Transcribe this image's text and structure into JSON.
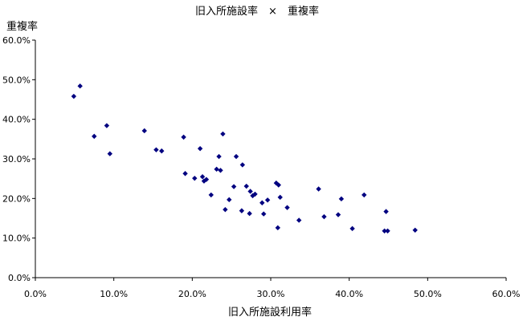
{
  "chart_data": {
    "type": "scatter",
    "title": "旧入所施設率　×　重複率",
    "xlabel": "旧入所施設利用率",
    "ylabel": "重複率",
    "xlim": [
      0,
      60
    ],
    "ylim": [
      0,
      60
    ],
    "xticks": [
      "0.0%",
      "10.0%",
      "20.0%",
      "30.0%",
      "40.0%",
      "50.0%",
      "60.0%"
    ],
    "yticks": [
      "0.0%",
      "10.0%",
      "20.0%",
      "30.0%",
      "40.0%",
      "50.0%",
      "60.0%"
    ],
    "grid": false,
    "legend": "none",
    "marker_color": "#000080",
    "marker": "diamond",
    "points": [
      {
        "x": 4.9,
        "y": 45.8
      },
      {
        "x": 5.7,
        "y": 48.4
      },
      {
        "x": 7.5,
        "y": 35.7
      },
      {
        "x": 9.1,
        "y": 38.4
      },
      {
        "x": 9.5,
        "y": 31.3
      },
      {
        "x": 13.9,
        "y": 37.1
      },
      {
        "x": 15.4,
        "y": 32.3
      },
      {
        "x": 16.1,
        "y": 32.0
      },
      {
        "x": 18.9,
        "y": 35.5
      },
      {
        "x": 19.1,
        "y": 26.3
      },
      {
        "x": 20.3,
        "y": 25.1
      },
      {
        "x": 21.0,
        "y": 32.6
      },
      {
        "x": 21.3,
        "y": 25.5
      },
      {
        "x": 21.5,
        "y": 24.4
      },
      {
        "x": 21.8,
        "y": 24.8
      },
      {
        "x": 22.4,
        "y": 20.9
      },
      {
        "x": 23.1,
        "y": 27.4
      },
      {
        "x": 23.4,
        "y": 30.6
      },
      {
        "x": 23.6,
        "y": 27.1
      },
      {
        "x": 23.9,
        "y": 36.3
      },
      {
        "x": 24.2,
        "y": 17.2
      },
      {
        "x": 24.7,
        "y": 19.7
      },
      {
        "x": 25.3,
        "y": 23.0
      },
      {
        "x": 25.6,
        "y": 30.6
      },
      {
        "x": 26.3,
        "y": 16.9
      },
      {
        "x": 26.4,
        "y": 28.5
      },
      {
        "x": 26.9,
        "y": 23.1
      },
      {
        "x": 27.3,
        "y": 16.2
      },
      {
        "x": 27.4,
        "y": 21.8
      },
      {
        "x": 27.7,
        "y": 20.7
      },
      {
        "x": 28.0,
        "y": 21.1
      },
      {
        "x": 28.9,
        "y": 18.9
      },
      {
        "x": 29.1,
        "y": 16.1
      },
      {
        "x": 29.6,
        "y": 19.6
      },
      {
        "x": 30.7,
        "y": 23.9
      },
      {
        "x": 30.9,
        "y": 12.6
      },
      {
        "x": 31.0,
        "y": 23.4
      },
      {
        "x": 31.2,
        "y": 20.3
      },
      {
        "x": 32.1,
        "y": 17.7
      },
      {
        "x": 33.6,
        "y": 14.5
      },
      {
        "x": 36.1,
        "y": 22.4
      },
      {
        "x": 36.8,
        "y": 15.4
      },
      {
        "x": 38.6,
        "y": 15.9
      },
      {
        "x": 39.0,
        "y": 19.9
      },
      {
        "x": 40.4,
        "y": 12.4
      },
      {
        "x": 41.9,
        "y": 20.9
      },
      {
        "x": 44.5,
        "y": 11.8
      },
      {
        "x": 44.7,
        "y": 16.7
      },
      {
        "x": 44.9,
        "y": 11.8
      },
      {
        "x": 48.4,
        "y": 12.0
      }
    ]
  }
}
